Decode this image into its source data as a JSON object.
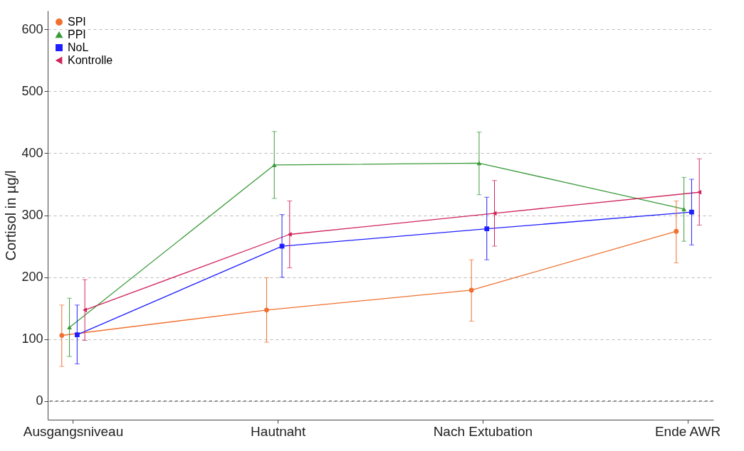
{
  "chart_data": {
    "type": "line",
    "ylabel": "Cortisol in µg/l",
    "categories": [
      "Ausgangsniveau",
      "Hautnaht",
      "Nach Extubation",
      "Ende AWR"
    ],
    "series": [
      {
        "name": "SPI",
        "color": "#f07030",
        "marker": "circle",
        "values": [
          106,
          147,
          179,
          274
        ],
        "errors": [
          [
            56,
            155
          ],
          [
            95,
            199
          ],
          [
            129,
            228
          ],
          [
            223,
            323
          ]
        ]
      },
      {
        "name": "PPI",
        "color": "#3a9a3a",
        "marker": "triangle",
        "values": [
          119,
          381,
          384,
          310
        ],
        "errors": [
          [
            72,
            166
          ],
          [
            327,
            435
          ],
          [
            333,
            434
          ],
          [
            258,
            361
          ]
        ]
      },
      {
        "name": "NoL",
        "color": "#1f1fff",
        "marker": "square",
        "values": [
          107,
          250,
          278,
          305
        ],
        "errors": [
          [
            60,
            155
          ],
          [
            200,
            301
          ],
          [
            228,
            329
          ],
          [
            252,
            358
          ]
        ]
      },
      {
        "name": "Kontrolle",
        "color": "#d0245a",
        "marker": "triangle-left",
        "values": [
          147,
          269,
          303,
          337
        ],
        "errors": [
          [
            98,
            196
          ],
          [
            215,
            323
          ],
          [
            250,
            356
          ],
          [
            284,
            391
          ]
        ]
      }
    ],
    "ylim": [
      -30,
      630
    ],
    "yticks": [
      0,
      100,
      200,
      300,
      400,
      500,
      600
    ],
    "grid": "y",
    "legend": "top left",
    "ref_lines": [
      {
        "axis": "y",
        "value": 0,
        "color": "#333333",
        "line_style": "dashed"
      }
    ]
  }
}
